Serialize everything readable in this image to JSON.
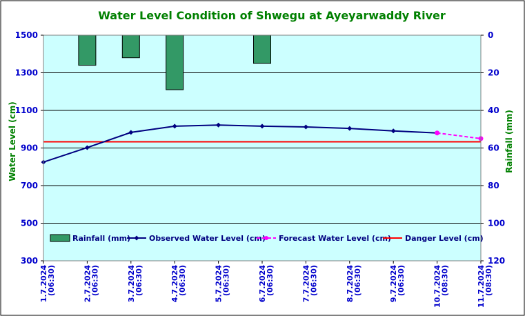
{
  "chart_data": {
    "type": "line",
    "title": "Water Level Condition of Shwegu at Ayeyarwaddy River",
    "ylabel": "Water Level (cm)",
    "y2label": "Rainfall (mm)",
    "ylim": [
      300,
      1500
    ],
    "yticks": [
      "300",
      "500",
      "700",
      "900",
      "1100",
      "1300",
      "1500"
    ],
    "y2lim": [
      0,
      120
    ],
    "y2ticks": [
      "0",
      "20",
      "40",
      "60",
      "80",
      "100",
      "120"
    ],
    "y2_reversed": true,
    "categories": [
      [
        "1.7.2024",
        "(06:30)"
      ],
      [
        "2.7.2024",
        "(06:30)"
      ],
      [
        "3.7.2024",
        "(06:30)"
      ],
      [
        "4.7.2024",
        "(06:30)"
      ],
      [
        "5.7.2024",
        "(06:30)"
      ],
      [
        "6.7.2024",
        "(06:30)"
      ],
      [
        "7.7.2024",
        "(06:30)"
      ],
      [
        "8.7.2024",
        "(06:30)"
      ],
      [
        "9.7.2024",
        "(06:30)"
      ],
      [
        "10.7.2024",
        "(08:30)"
      ],
      [
        "11.7.2024",
        "(08:30)"
      ]
    ],
    "grid": true,
    "legend_placement": "bottom-inside",
    "series": [
      {
        "name": "Rainfall (mm)",
        "type": "bar",
        "axis": "right",
        "color": "#339966",
        "values": [
          null,
          16,
          12,
          29,
          null,
          15,
          null,
          null,
          null,
          null,
          null
        ]
      },
      {
        "name": "Observed Water Level (cm)",
        "type": "line",
        "axis": "left",
        "color": "#000080",
        "marker": "diamond",
        "values": [
          825,
          902,
          983,
          1016,
          1022,
          1016,
          1012,
          1004,
          991,
          980,
          null
        ]
      },
      {
        "name": "Forecast Water Level (cm)",
        "type": "line",
        "axis": "left",
        "color": "#ff00ff",
        "dashed": true,
        "marker": "circle",
        "values": [
          null,
          null,
          null,
          null,
          null,
          null,
          null,
          null,
          null,
          980,
          950
        ]
      },
      {
        "name": "Danger Level (cm)",
        "type": "line",
        "axis": "left",
        "color": "#ff0000",
        "constant": 933
      }
    ],
    "colors": {
      "plot_background": "#ccffff",
      "title": "#008000",
      "axis_text": "#0000cc",
      "axis_label": "#008000"
    }
  }
}
